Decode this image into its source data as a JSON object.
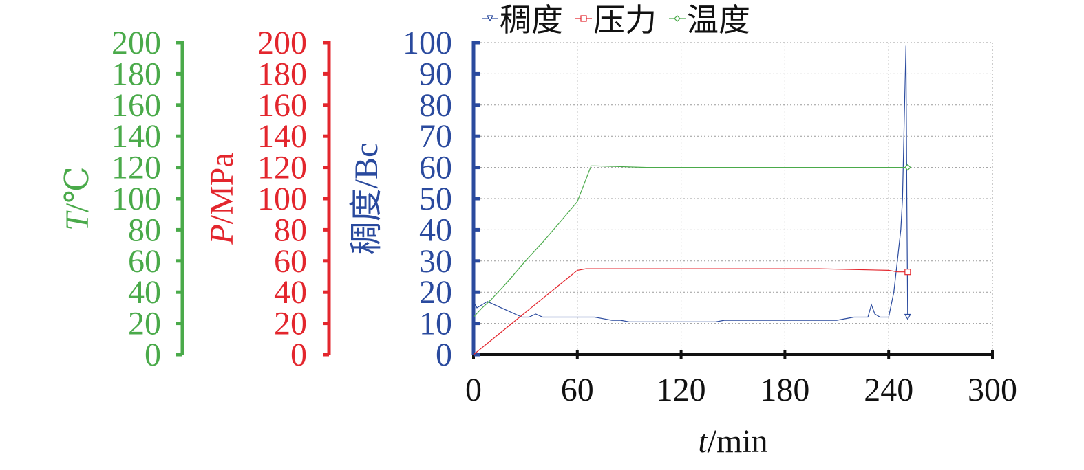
{
  "chart_data": {
    "type": "line",
    "xlabel": "t/min",
    "xlabel_parts": {
      "var": "t",
      "unit": "/min"
    },
    "x_ticks": [
      0,
      60,
      120,
      180,
      240,
      300
    ],
    "xlim": [
      0,
      300
    ],
    "grid": true,
    "legend_placement": "top",
    "axes": [
      {
        "id": "consistency",
        "label": "稠度/Bc",
        "color": "#2a4a9e",
        "ylim": [
          0,
          100
        ],
        "ticks": [
          0,
          10,
          20,
          30,
          40,
          50,
          60,
          70,
          80,
          90,
          100
        ]
      },
      {
        "id": "pressure",
        "label": "P/MPa",
        "label_parts": {
          "var": "P",
          "unit": "/MPa"
        },
        "color": "#e3262d",
        "ylim": [
          0,
          200
        ],
        "ticks": [
          0,
          20,
          40,
          60,
          80,
          100,
          120,
          140,
          160,
          180,
          200
        ]
      },
      {
        "id": "temperature",
        "label": "T/℃",
        "label_parts": {
          "var": "T",
          "unit": "/℃"
        },
        "color": "#4aaa4a",
        "ylim": [
          0,
          200
        ],
        "ticks": [
          0,
          20,
          40,
          60,
          80,
          100,
          120,
          140,
          160,
          180,
          200
        ]
      }
    ],
    "series": [
      {
        "name": "稠度",
        "axis": "consistency",
        "color": "#2a4a9e",
        "marker": "triangle-down",
        "x": [
          0,
          2,
          5,
          8,
          12,
          16,
          20,
          24,
          28,
          32,
          36,
          40,
          45,
          50,
          55,
          60,
          65,
          70,
          75,
          80,
          85,
          90,
          100,
          110,
          120,
          130,
          140,
          145,
          150,
          160,
          170,
          180,
          190,
          200,
          210,
          220,
          228,
          230,
          232,
          235,
          238,
          240,
          243,
          245,
          247,
          248,
          249,
          250,
          250.5,
          251
        ],
        "y": [
          17,
          15,
          16,
          17,
          16,
          15,
          14,
          13,
          12,
          12,
          13,
          12,
          12,
          12,
          12,
          12,
          12,
          12,
          11.5,
          11,
          11,
          10.5,
          10.5,
          10.5,
          10.5,
          10.5,
          10.5,
          11,
          11,
          11,
          11,
          11,
          11,
          11,
          11,
          12,
          12,
          16,
          13,
          12,
          12,
          12,
          20,
          30,
          40,
          50,
          75,
          99,
          50,
          12
        ]
      },
      {
        "name": "压力",
        "axis": "pressure",
        "color": "#e3262d",
        "marker": "square",
        "x": [
          0,
          10,
          20,
          30,
          40,
          50,
          60,
          65,
          70,
          100,
          150,
          200,
          240,
          245,
          251
        ],
        "y": [
          0,
          9,
          18,
          27,
          36,
          45,
          54,
          55,
          55,
          55,
          55,
          55,
          54,
          53,
          53
        ]
      },
      {
        "name": "温度",
        "axis": "temperature",
        "color": "#4aaa4a",
        "marker": "diamond",
        "x": [
          0,
          5,
          10,
          20,
          30,
          40,
          50,
          60,
          68,
          70,
          100,
          150,
          200,
          240,
          251
        ],
        "y": [
          24,
          30,
          35,
          47,
          60,
          72,
          85,
          98,
          121,
          121,
          120,
          120,
          120,
          120,
          120
        ]
      }
    ]
  }
}
